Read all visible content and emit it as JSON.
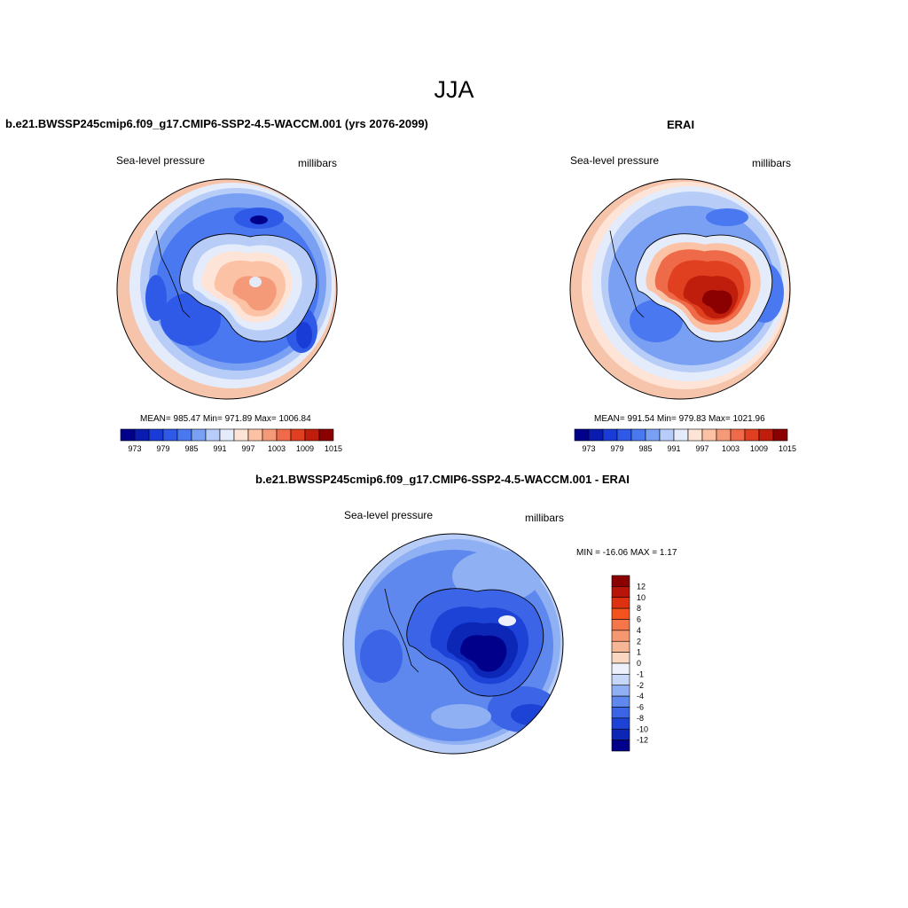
{
  "title": "JJA",
  "panels": [
    {
      "title": "b.e21.BWSSP245cmip6.f09_g17.CMIP6-SSP2-4.5-WACCM.001 (yrs 2076-2099)",
      "left_label": "Sea-level pressure",
      "right_label": "millibars",
      "stats": "MEAN= 985.47  Min= 971.89  Max= 1006.84"
    },
    {
      "title": "ERAI",
      "left_label": "Sea-level pressure",
      "right_label": "millibars",
      "stats": "MEAN= 991.54  Min= 979.83  Max= 1021.96"
    },
    {
      "title": "b.e21.BWSSP245cmip6.f09_g17.CMIP6-SSP2-4.5-WACCM.001 - ERAI",
      "left_label": "Sea-level pressure",
      "right_label": "millibars",
      "stats": "MIN = -16.06 MAX =   1.17"
    }
  ],
  "colorbar_horizontal": {
    "colors": [
      "#00008b",
      "#0a1cb0",
      "#1a3cd6",
      "#2f5ae8",
      "#4a78f0",
      "#7aa0f4",
      "#b7cdf8",
      "#e4ecfb",
      "#fde4d6",
      "#fbc2a6",
      "#f59a78",
      "#ee6a48",
      "#e0401f",
      "#c01e0c",
      "#8b0000"
    ],
    "tick_labels": [
      "973",
      "979",
      "985",
      "991",
      "997",
      "1003",
      "1009",
      "1015"
    ]
  },
  "colorbar_vertical": {
    "colors": [
      "#8b0000",
      "#b8150a",
      "#de3112",
      "#f4531e",
      "#f5764a",
      "#f5976f",
      "#f7b796",
      "#fad7c0",
      "#eef1fb",
      "#c7d7f8",
      "#8fb0f3",
      "#5f88ee",
      "#3b65e6",
      "#1d43d6",
      "#0c26b6",
      "#00008b"
    ],
    "tick_labels": [
      "12",
      "10",
      "8",
      "6",
      "4",
      "2",
      "1",
      "0",
      "-1",
      "-2",
      "-4",
      "-6",
      "-8",
      "-10",
      "-12"
    ]
  }
}
